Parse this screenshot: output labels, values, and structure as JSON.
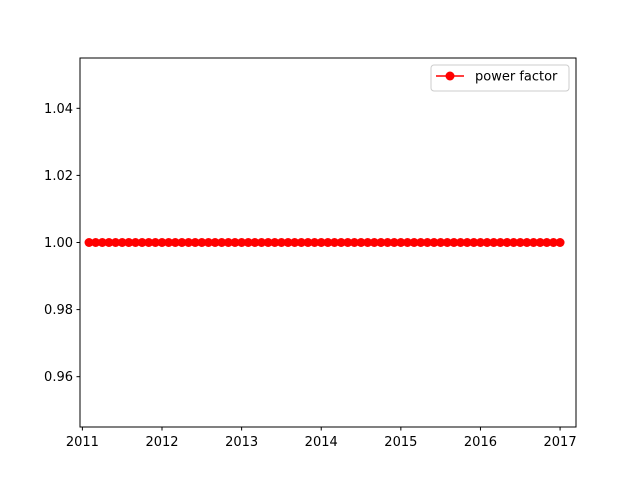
{
  "chart_data": {
    "type": "line",
    "title": "",
    "xlabel": "",
    "ylabel": "",
    "xlim": [
      2010.97,
      2017.2
    ],
    "ylim": [
      0.945,
      1.055
    ],
    "x_ticks": [
      2011,
      2012,
      2013,
      2014,
      2015,
      2016,
      2017
    ],
    "x_tick_labels": [
      "2011",
      "2012",
      "2013",
      "2014",
      "2015",
      "2016",
      "2017"
    ],
    "y_ticks": [
      0.96,
      0.98,
      1.0,
      1.02,
      1.04
    ],
    "y_tick_labels": [
      "0.96",
      "0.98",
      "1.00",
      "1.02",
      "1.04"
    ],
    "grid": false,
    "legend_position": "top-right",
    "series": [
      {
        "name": "power factor",
        "color": "#ff0000",
        "marker": "circle",
        "x_start": "2011-02",
        "x_end": "2017-01",
        "frequency": "monthly",
        "x": [
          "2011-02",
          "2011-03",
          "2011-04",
          "2011-05",
          "2011-06",
          "2011-07",
          "2011-08",
          "2011-09",
          "2011-10",
          "2011-11",
          "2011-12",
          "2012-01",
          "2012-02",
          "2012-03",
          "2012-04",
          "2012-05",
          "2012-06",
          "2012-07",
          "2012-08",
          "2012-09",
          "2012-10",
          "2012-11",
          "2012-12",
          "2013-01",
          "2013-02",
          "2013-03",
          "2013-04",
          "2013-05",
          "2013-06",
          "2013-07",
          "2013-08",
          "2013-09",
          "2013-10",
          "2013-11",
          "2013-12",
          "2014-01",
          "2014-02",
          "2014-03",
          "2014-04",
          "2014-05",
          "2014-06",
          "2014-07",
          "2014-08",
          "2014-09",
          "2014-10",
          "2014-11",
          "2014-12",
          "2015-01",
          "2015-02",
          "2015-03",
          "2015-04",
          "2015-05",
          "2015-06",
          "2015-07",
          "2015-08",
          "2015-09",
          "2015-10",
          "2015-11",
          "2015-12",
          "2016-01",
          "2016-02",
          "2016-03",
          "2016-04",
          "2016-05",
          "2016-06",
          "2016-07",
          "2016-08",
          "2016-09",
          "2016-10",
          "2016-11",
          "2016-12",
          "2017-01"
        ],
        "values": [
          1.0,
          1.0,
          1.0,
          1.0,
          1.0,
          1.0,
          1.0,
          1.0,
          1.0,
          1.0,
          1.0,
          1.0,
          1.0,
          1.0,
          1.0,
          1.0,
          1.0,
          1.0,
          1.0,
          1.0,
          1.0,
          1.0,
          1.0,
          1.0,
          1.0,
          1.0,
          1.0,
          1.0,
          1.0,
          1.0,
          1.0,
          1.0,
          1.0,
          1.0,
          1.0,
          1.0,
          1.0,
          1.0,
          1.0,
          1.0,
          1.0,
          1.0,
          1.0,
          1.0,
          1.0,
          1.0,
          1.0,
          1.0,
          1.0,
          1.0,
          1.0,
          1.0,
          1.0,
          1.0,
          1.0,
          1.0,
          1.0,
          1.0,
          1.0,
          1.0,
          1.0,
          1.0,
          1.0,
          1.0,
          1.0,
          1.0,
          1.0,
          1.0,
          1.0,
          1.0,
          1.0,
          1.0
        ]
      }
    ]
  }
}
